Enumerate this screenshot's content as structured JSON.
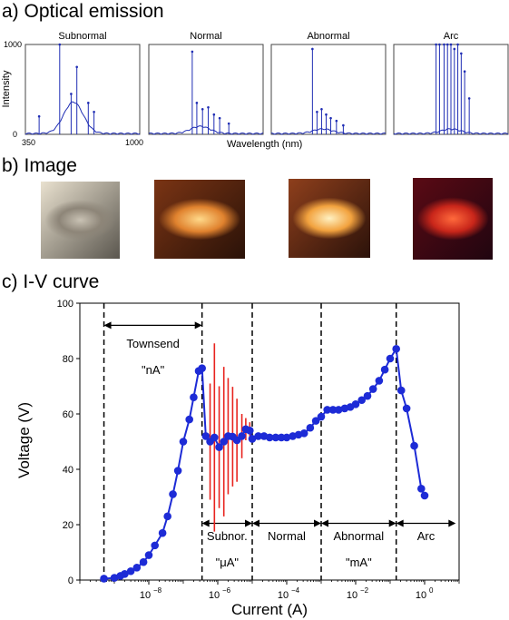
{
  "labels": {
    "section_a": "a) Optical emission",
    "section_b": "b) Image",
    "section_c": "c) I-V curve"
  },
  "emission": {
    "y_label": "Intensity",
    "x_label": "Wavelength (nm)",
    "y_ticks": [
      "0",
      "1000"
    ],
    "x_ticks": [
      "350",
      "1000"
    ],
    "panels": [
      {
        "title": "Subnormal"
      },
      {
        "title": "Normal"
      },
      {
        "title": "Abnormal"
      },
      {
        "title": "Arc"
      }
    ]
  },
  "photos": [
    {
      "name": "subnormal",
      "colors": [
        "#c9c2b4",
        "#8d8578",
        "#e9e1cf",
        "#5a564e"
      ]
    },
    {
      "name": "normal",
      "colors": [
        "#ffd98a",
        "#e0822e",
        "#7a3414",
        "#2a1208"
      ]
    },
    {
      "name": "abnormal",
      "colors": [
        "#fff1c2",
        "#f2a23e",
        "#8e3f1c",
        "#2b120a"
      ]
    },
    {
      "name": "arc",
      "colors": [
        "#ff6a3c",
        "#c9261a",
        "#5a0a14",
        "#200510"
      ]
    }
  ],
  "chart_data": {
    "type": "scatter",
    "title": "",
    "xlabel": "Current (A)",
    "ylabel": "Voltage (V)",
    "x_scale": "log",
    "xlim": [
      1e-10,
      10
    ],
    "ylim": [
      0,
      100
    ],
    "x_ticks": [
      {
        "label": "10",
        "exp": "−8",
        "value": 1e-08
      },
      {
        "label": "10",
        "exp": "−6",
        "value": 1e-06
      },
      {
        "label": "10",
        "exp": "−4",
        "value": 0.0001
      },
      {
        "label": "10",
        "exp": "−2",
        "value": 0.01
      },
      {
        "label": "10",
        "exp": "0",
        "value": 1
      }
    ],
    "y_ticks": [
      0,
      20,
      40,
      60,
      80,
      100
    ],
    "vlines": [
      5e-10,
      3.5e-07,
      1e-05,
      0.001,
      0.15
    ],
    "series": [
      {
        "x": [
          5e-10,
          1e-09,
          1.5e-09,
          2e-09,
          3e-09,
          4.5e-09,
          7e-09,
          1e-08,
          1.5e-08,
          2.5e-08,
          3.5e-08,
          5e-08,
          7e-08,
          1e-07,
          1.5e-07,
          2e-07,
          2.8e-07
        ],
        "y": [
          0.5,
          0.8,
          1.5,
          2.2,
          3.2,
          4.5,
          6.5,
          9,
          12.5,
          17,
          23,
          31,
          39.5,
          50,
          58,
          66,
          75.5
        ]
      },
      {
        "x": [
          3.5e-07,
          4.5e-07,
          6e-07,
          8e-07,
          1.1e-06,
          1.5e-06,
          2e-06,
          2.7e-06,
          3.6e-06,
          5e-06,
          6.5e-06,
          8.5e-06
        ],
        "y": [
          76.5,
          52,
          50,
          51.5,
          48,
          50,
          52,
          51.8,
          50.5,
          52,
          54.5,
          54
        ],
        "err": [
          0,
          0,
          21,
          34,
          22,
          27,
          21,
          18,
          15,
          8,
          4,
          3
        ]
      },
      {
        "x": [
          1e-05,
          1.5e-05,
          2.2e-05,
          3.2e-05,
          4.8e-05,
          7e-05,
          0.0001,
          0.00015,
          0.00022,
          0.00032,
          0.00048,
          0.0007
        ],
        "y": [
          51,
          52,
          52,
          51.5,
          51.5,
          51.5,
          51.5,
          52,
          52.5,
          53,
          55,
          57.5
        ]
      },
      {
        "x": [
          0.001,
          0.0015,
          0.0022,
          0.0032,
          0.0048,
          0.007,
          0.01,
          0.015,
          0.022,
          0.032,
          0.048,
          0.07,
          0.1,
          0.15
        ],
        "y": [
          59,
          61.5,
          61.5,
          61.5,
          62,
          62.5,
          63.5,
          65,
          66.5,
          69,
          72,
          76,
          80,
          83.5
        ]
      },
      {
        "x": [
          0.21,
          0.3,
          0.5,
          0.8,
          1.0
        ],
        "y": [
          68.5,
          62,
          48.5,
          33,
          30.5
        ]
      }
    ],
    "regions": [
      {
        "label": "Townsend",
        "sub": "\"nA\"",
        "x1": 5e-10,
        "x2": 3.5e-07
      },
      {
        "label": "Subnor.",
        "sub": "\"μA\"",
        "x1": 3.5e-07,
        "x2": 1e-05
      },
      {
        "label": "Normal",
        "sub": "",
        "x1": 1e-05,
        "x2": 0.001
      },
      {
        "label": "Abnormal",
        "sub": "\"mA\"",
        "x1": 0.001,
        "x2": 0.15
      },
      {
        "label": "Arc",
        "sub": "",
        "x1": 0.15,
        "x2": 8
      }
    ]
  }
}
